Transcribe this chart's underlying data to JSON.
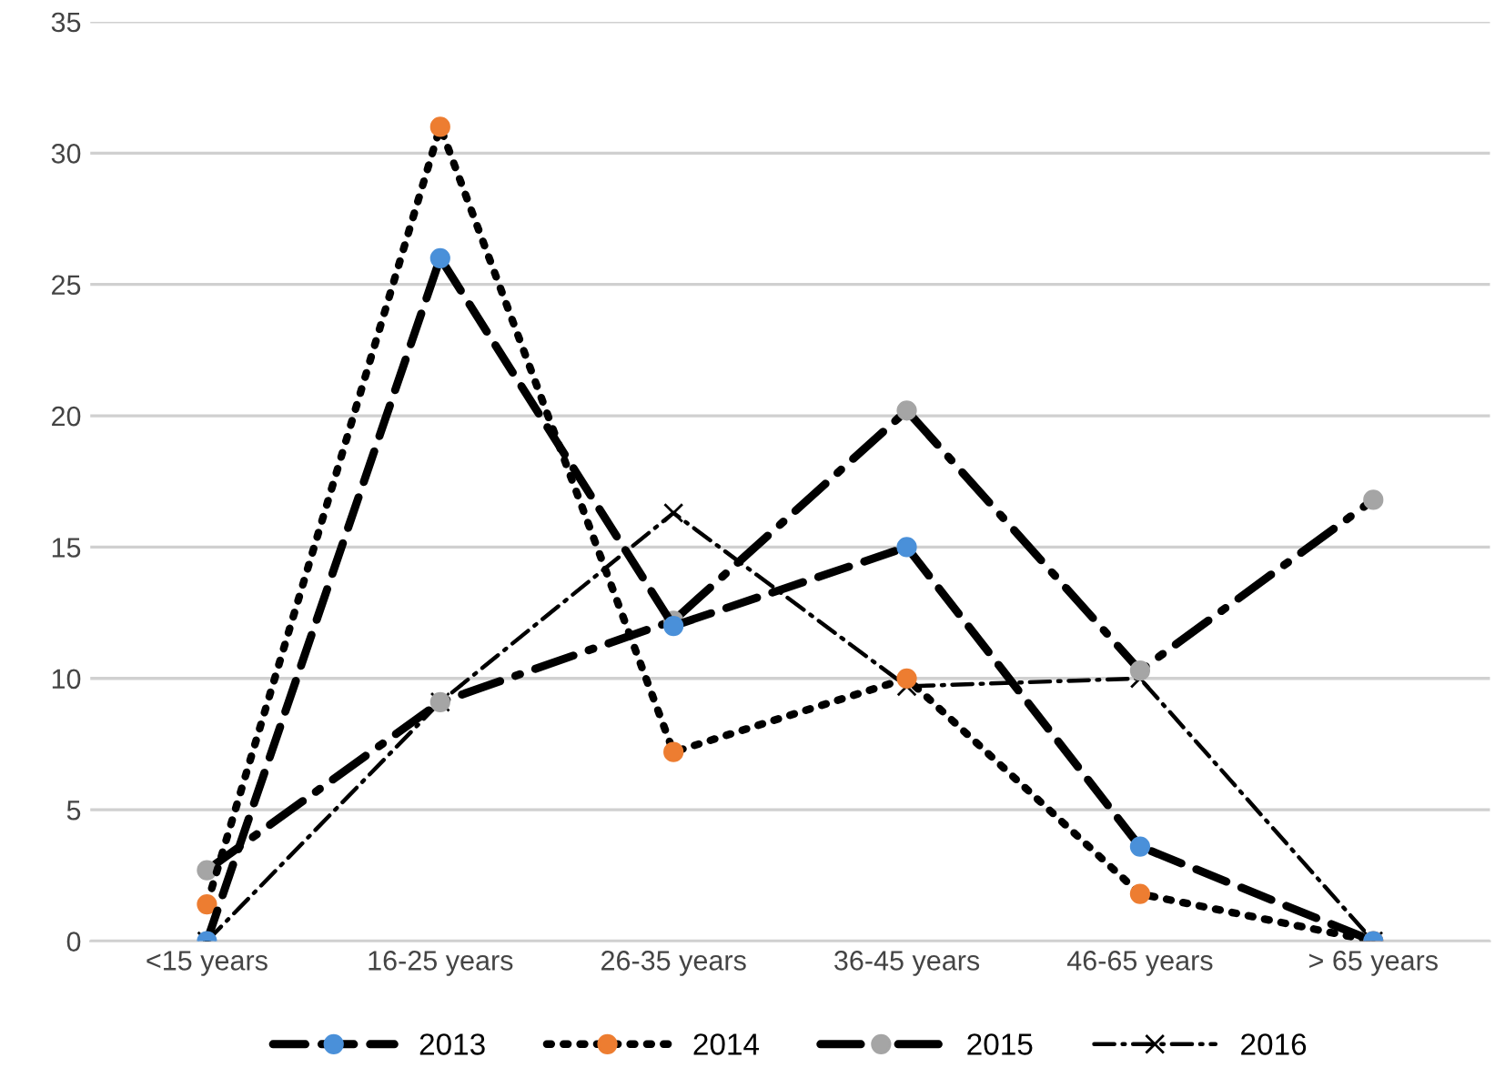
{
  "chart_data": {
    "type": "line",
    "categories": [
      "<15 years",
      "16-25 years",
      "26-35 years",
      "36-45 years",
      "46-65 years",
      "> 65 years"
    ],
    "series": [
      {
        "name": "2013",
        "color": "#4a90d9",
        "marker": "circle",
        "line_style": "dashed",
        "values": [
          0,
          26,
          12,
          15,
          3.6,
          0
        ]
      },
      {
        "name": "2014",
        "color": "#ed7d31",
        "marker": "circle",
        "line_style": "dotted",
        "values": [
          1.4,
          31,
          7.2,
          10,
          1.8,
          0
        ]
      },
      {
        "name": "2015",
        "color": "#a5a5a5",
        "marker": "circle",
        "line_style": "dashdot",
        "values": [
          2.7,
          9.1,
          12.2,
          20.2,
          10.3,
          16.8
        ]
      },
      {
        "name": "2016",
        "color": "#000000",
        "marker": "cross",
        "line_style": "dashdot",
        "values": [
          0,
          9.1,
          16.3,
          9.7,
          10,
          0
        ]
      }
    ],
    "ylim": [
      0,
      35
    ],
    "yticks": [
      0,
      5,
      10,
      15,
      20,
      25,
      30,
      35
    ],
    "grid": "y",
    "legend": "bottom"
  }
}
